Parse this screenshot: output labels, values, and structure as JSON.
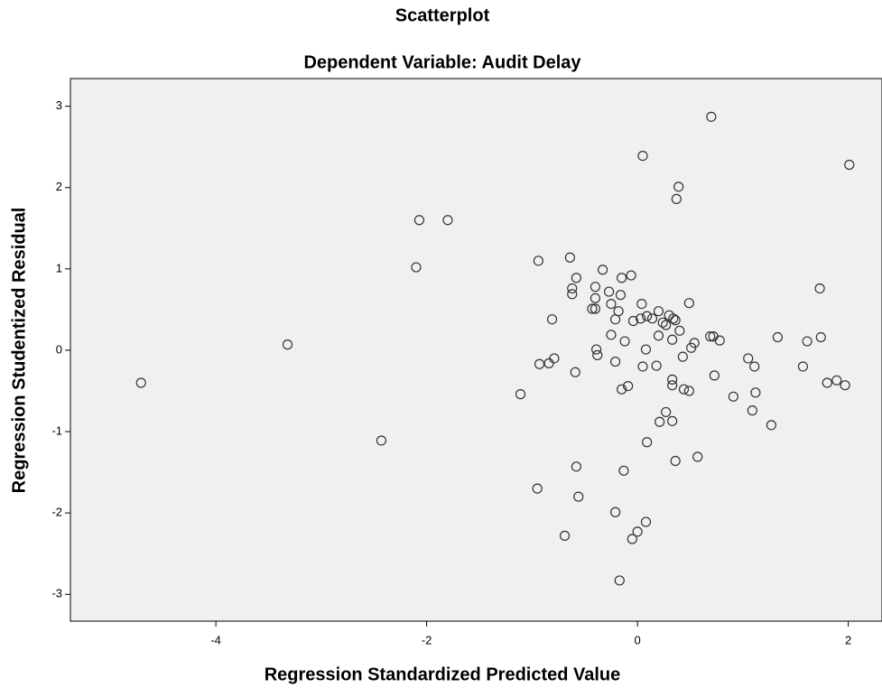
{
  "chart_data": {
    "type": "scatter",
    "title": "Scatterplot",
    "subtitle": "Dependent Variable: Audit Delay",
    "x_label": "Regression Standardized Predicted Value",
    "y_label": "Regression Studentized Residual",
    "xlim": [
      -5.38,
      2.32
    ],
    "ylim": [
      -3.33,
      3.34
    ],
    "xticks": [
      -4,
      -2,
      0,
      2
    ],
    "yticks": [
      -3,
      -2,
      -1,
      0,
      1,
      2,
      3
    ],
    "marker_color": "#333333",
    "background": "#f0f0f0",
    "x": [
      -4.71,
      -3.32,
      -2.43,
      -2.1,
      -2.07,
      -1.8,
      -1.11,
      -0.94,
      -0.93,
      -0.95,
      -0.81,
      -0.84,
      -0.79,
      -0.69,
      -0.64,
      -0.58,
      -0.62,
      -0.62,
      -0.59,
      -0.58,
      -0.56,
      -0.33,
      -0.4,
      -0.43,
      -0.4,
      -0.4,
      -0.39,
      -0.38,
      -0.27,
      -0.25,
      -0.25,
      -0.21,
      -0.21,
      -0.18,
      -0.16,
      -0.15,
      -0.17,
      -0.21,
      -0.15,
      -0.12,
      -0.13,
      -0.09,
      -0.06,
      -0.05,
      -0.04,
      0.0,
      0.03,
      0.04,
      0.05,
      0.05,
      0.08,
      0.09,
      0.08,
      0.09,
      0.14,
      0.18,
      0.2,
      0.21,
      0.2,
      0.24,
      0.27,
      0.27,
      0.3,
      0.33,
      0.33,
      0.33,
      0.33,
      0.36,
      0.34,
      0.36,
      0.37,
      0.39,
      0.4,
      0.43,
      0.44,
      0.49,
      0.49,
      0.51,
      0.54,
      0.57,
      0.69,
      0.72,
      0.73,
      0.7,
      0.78,
      0.91,
      1.05,
      1.09,
      1.11,
      1.12,
      1.27,
      1.33,
      1.57,
      1.61,
      1.73,
      1.74,
      1.8,
      1.89,
      1.97,
      2.01
    ],
    "y": [
      -0.4,
      0.07,
      -1.11,
      1.02,
      1.6,
      1.6,
      -0.54,
      1.1,
      -0.17,
      -1.7,
      0.38,
      -0.16,
      -0.1,
      -2.28,
      1.14,
      0.89,
      0.76,
      0.69,
      -0.27,
      -1.43,
      -1.8,
      0.99,
      0.51,
      0.51,
      0.64,
      0.78,
      0.01,
      -0.06,
      0.72,
      0.57,
      0.19,
      -0.14,
      0.38,
      0.48,
      0.68,
      -0.48,
      -2.83,
      -1.99,
      0.89,
      0.11,
      -1.48,
      -0.44,
      0.92,
      -2.32,
      0.36,
      -2.23,
      0.39,
      0.57,
      -0.2,
      2.39,
      -2.11,
      0.42,
      0.01,
      -1.13,
      0.39,
      -0.19,
      0.48,
      -0.88,
      0.18,
      0.34,
      -0.76,
      0.31,
      0.43,
      0.13,
      -0.87,
      -0.36,
      -0.43,
      0.37,
      0.39,
      -1.36,
      1.86,
      2.01,
      0.24,
      -0.08,
      -0.48,
      -0.5,
      0.58,
      0.03,
      0.09,
      -1.31,
      0.17,
      0.17,
      -0.31,
      2.87,
      0.12,
      -0.57,
      -0.1,
      -0.74,
      -0.2,
      -0.52,
      -0.92,
      0.16,
      -0.2,
      0.11,
      0.76,
      0.16,
      -0.4,
      -0.37,
      -0.43,
      2.28
    ]
  }
}
